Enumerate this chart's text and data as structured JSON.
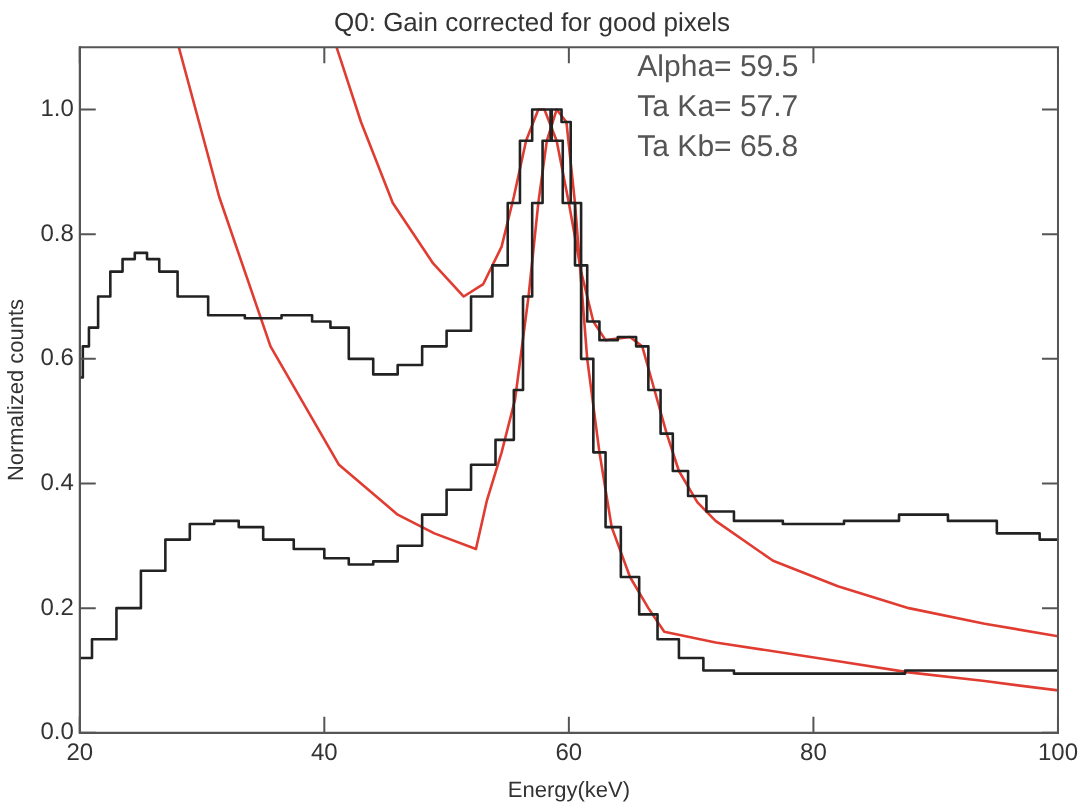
{
  "chart_data": {
    "type": "line",
    "title": "Q0: Gain corrected for good pixels",
    "xlabel": "Energy(keV)",
    "ylabel": "Normalized counts",
    "xlim": [
      20,
      100
    ],
    "xticks": [
      20,
      40,
      60,
      80,
      100
    ],
    "ylim": [
      0,
      1.1
    ],
    "yticks": [
      {
        "value": 0,
        "label": "0.0"
      },
      0.2,
      0.4,
      0.6,
      0.8,
      {
        "value": 1,
        "label": "1.0"
      }
    ],
    "grid": false,
    "legend": false,
    "marker": "none",
    "line_style": "solid",
    "annotations": [
      "Alpha= 59.5",
      "Ta Ka= 57.7",
      "Ta Kb= 65.8"
    ],
    "series": [
      {
        "type": "step",
        "color": "#222222",
        "x": [
          20,
          20.5,
          21,
          22,
          23,
          24,
          25,
          26,
          27,
          29,
          32,
          35,
          38,
          40,
          41,
          43,
          45,
          47,
          49,
          51,
          53,
          54.5,
          55.5,
          56.5,
          57.5,
          58,
          59,
          60,
          61,
          62,
          63,
          65,
          66,
          67,
          68,
          69,
          70.5,
          72,
          75,
          80,
          85,
          89,
          93,
          97,
          100
        ],
        "values": [
          0.57,
          0.62,
          0.65,
          0.7,
          0.74,
          0.76,
          0.77,
          0.76,
          0.74,
          0.7,
          0.67,
          0.665,
          0.67,
          0.66,
          0.65,
          0.6,
          0.575,
          0.59,
          0.62,
          0.645,
          0.7,
          0.75,
          0.85,
          0.95,
          1.0,
          1.0,
          0.95,
          0.85,
          0.75,
          0.66,
          0.63,
          0.635,
          0.62,
          0.55,
          0.48,
          0.42,
          0.38,
          0.355,
          0.34,
          0.335,
          0.34,
          0.35,
          0.34,
          0.32,
          0.31
        ]
      },
      {
        "type": "step",
        "color": "#222222",
        "x": [
          20,
          22,
          24,
          26,
          28,
          30,
          32,
          34,
          36,
          39,
          41,
          43,
          45,
          47,
          49,
          51,
          53,
          55,
          56,
          56.5,
          57.5,
          58.2,
          59,
          59.8,
          60.5,
          61.5,
          62.5,
          63.5,
          65,
          66.5,
          68,
          70,
          72,
          75,
          80,
          85,
          90,
          100
        ],
        "values": [
          0.12,
          0.15,
          0.2,
          0.26,
          0.31,
          0.335,
          0.34,
          0.33,
          0.31,
          0.295,
          0.28,
          0.27,
          0.275,
          0.3,
          0.35,
          0.39,
          0.43,
          0.47,
          0.55,
          0.7,
          0.85,
          0.95,
          1.0,
          0.98,
          0.85,
          0.6,
          0.45,
          0.33,
          0.25,
          0.19,
          0.15,
          0.12,
          0.1,
          0.095,
          0.095,
          0.095,
          0.1,
          0.1
        ]
      },
      {
        "type": "line",
        "color": "#e03c31",
        "x": [
          41,
          43,
          45.6,
          48.9,
          51.4,
          53,
          54.5,
          55.5,
          56.5,
          57.5,
          58,
          59,
          60,
          61,
          62,
          63,
          65,
          66,
          67,
          68,
          69,
          70.5,
          72,
          76.7,
          82,
          87.8,
          94,
          100
        ],
        "values": [
          1.1,
          0.98,
          0.85,
          0.753,
          0.7,
          0.72,
          0.78,
          0.86,
          0.95,
          1.0,
          1.0,
          0.95,
          0.85,
          0.74,
          0.66,
          0.63,
          0.635,
          0.62,
          0.55,
          0.48,
          0.42,
          0.37,
          0.34,
          0.276,
          0.235,
          0.2,
          0.175,
          0.155
        ]
      },
      {
        "type": "line",
        "color": "#e03c31",
        "x": [
          28.1,
          31.4,
          35.6,
          41.2,
          46,
          49,
          52.4,
          53.3,
          54.5,
          55.6,
          56.7,
          57.5,
          58.2,
          59,
          59.8,
          60.5,
          61.5,
          62.5,
          63.5,
          65,
          66.5,
          67.8,
          72,
          77,
          82.3,
          87.8,
          94,
          100
        ],
        "values": [
          1.1,
          0.86,
          0.62,
          0.43,
          0.35,
          0.32,
          0.295,
          0.373,
          0.45,
          0.535,
          0.7,
          0.85,
          0.95,
          1.0,
          0.98,
          0.85,
          0.6,
          0.45,
          0.33,
          0.25,
          0.2,
          0.162,
          0.145,
          0.13,
          0.114,
          0.097,
          0.083,
          0.068
        ]
      }
    ]
  }
}
